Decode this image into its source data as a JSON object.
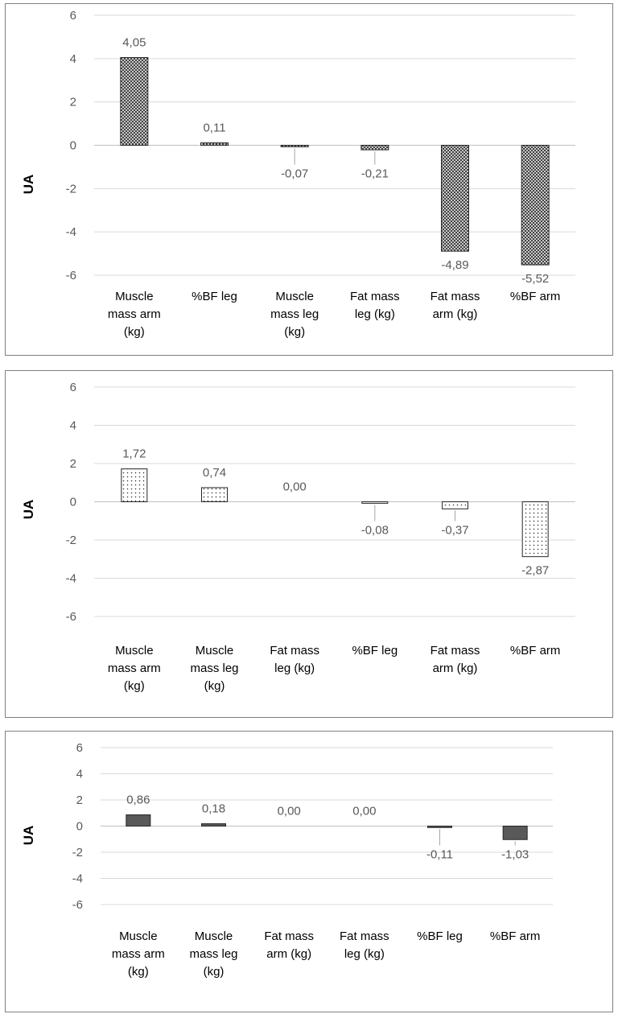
{
  "chart_data": [
    {
      "type": "bar",
      "ylabel": "UA",
      "ylim": [
        -6,
        6
      ],
      "yticks": [
        "6",
        "4",
        "2",
        "0",
        "-2",
        "-4",
        "-6"
      ],
      "grid": true,
      "fill_pattern": "cross-hatch",
      "categories": [
        [
          "Muscle",
          "mass arm",
          "(kg)"
        ],
        [
          "%BF leg"
        ],
        [
          "Muscle",
          "mass leg",
          "(kg)"
        ],
        [
          "Fat mass",
          "leg (kg)"
        ],
        [
          "Fat mass",
          "arm (kg)"
        ],
        [
          "%BF arm"
        ]
      ],
      "values": [
        4.05,
        0.11,
        -0.07,
        -0.21,
        -4.89,
        -5.52
      ],
      "labels": [
        "4,05",
        "0,11",
        "-0,07",
        "-0,21",
        "-4,89",
        "-5,52"
      ]
    },
    {
      "type": "bar",
      "ylabel": "UA",
      "ylim": [
        -6,
        6
      ],
      "yticks": [
        "6",
        "4",
        "2",
        "0",
        "-2",
        "-4",
        "-6"
      ],
      "grid": true,
      "fill_pattern": "dots",
      "categories": [
        [
          "Muscle",
          "mass arm",
          "(kg)"
        ],
        [
          "Muscle",
          "mass leg",
          "(kg)"
        ],
        [
          "Fat mass",
          "leg (kg)"
        ],
        [
          "%BF leg"
        ],
        [
          "Fat mass",
          "arm (kg)"
        ],
        [
          "%BF arm"
        ]
      ],
      "values": [
        1.72,
        0.74,
        0.0,
        -0.08,
        -0.37,
        -2.87
      ],
      "labels": [
        "1,72",
        "0,74",
        "0,00",
        "-0,08",
        "-0,37",
        "-2,87"
      ]
    },
    {
      "type": "bar",
      "ylabel": "UA",
      "ylim": [
        -6,
        6
      ],
      "yticks": [
        "6",
        "4",
        "2",
        "0",
        "-2",
        "-4",
        "-6"
      ],
      "grid": true,
      "fill_pattern": "solid",
      "color": "#595959",
      "categories": [
        [
          "Muscle",
          "mass arm",
          "(kg)"
        ],
        [
          "Muscle",
          "mass leg",
          "(kg)"
        ],
        [
          "Fat mass",
          "arm (kg)"
        ],
        [
          "Fat mass",
          "leg (kg)"
        ],
        [
          "%BF leg"
        ],
        [
          "%BF arm"
        ]
      ],
      "values": [
        0.86,
        0.18,
        0.0,
        0.0,
        -0.11,
        -1.03
      ],
      "labels": [
        "0,86",
        "0,18",
        "0,00",
        "0,00",
        "-0,11",
        "-1,03"
      ]
    }
  ]
}
